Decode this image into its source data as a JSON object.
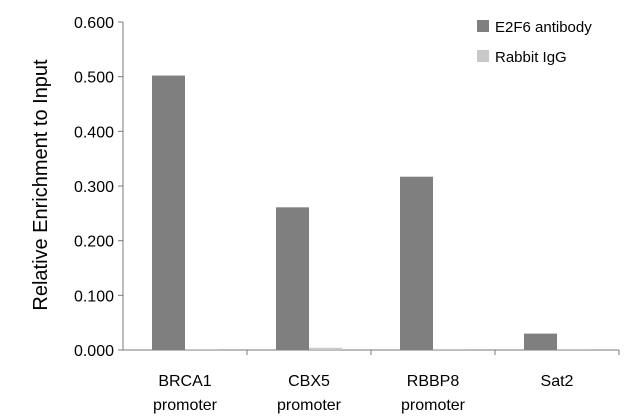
{
  "chart_data": {
    "type": "bar",
    "title": "",
    "xlabel": "",
    "ylabel": "Relative Enrichment to Input",
    "ylim": [
      0,
      0.6
    ],
    "yticks": [
      "0.000",
      "0.100",
      "0.200",
      "0.300",
      "0.400",
      "0.500",
      "0.600"
    ],
    "categories": [
      [
        "BRCA1",
        "promoter"
      ],
      [
        "CBX5",
        "promoter"
      ],
      [
        "RBBP8",
        "promoter"
      ],
      [
        "Sat2"
      ]
    ],
    "series": [
      {
        "name": "E2F6 antibody",
        "color": "#7f7f7f",
        "values": [
          0.502,
          0.261,
          0.317,
          0.03
        ]
      },
      {
        "name": "Rabbit IgG",
        "color": "#c8c8c8",
        "values": [
          0.001,
          0.004,
          0.002,
          0.002
        ]
      }
    ],
    "legend_position": "top-right",
    "grid": false
  }
}
